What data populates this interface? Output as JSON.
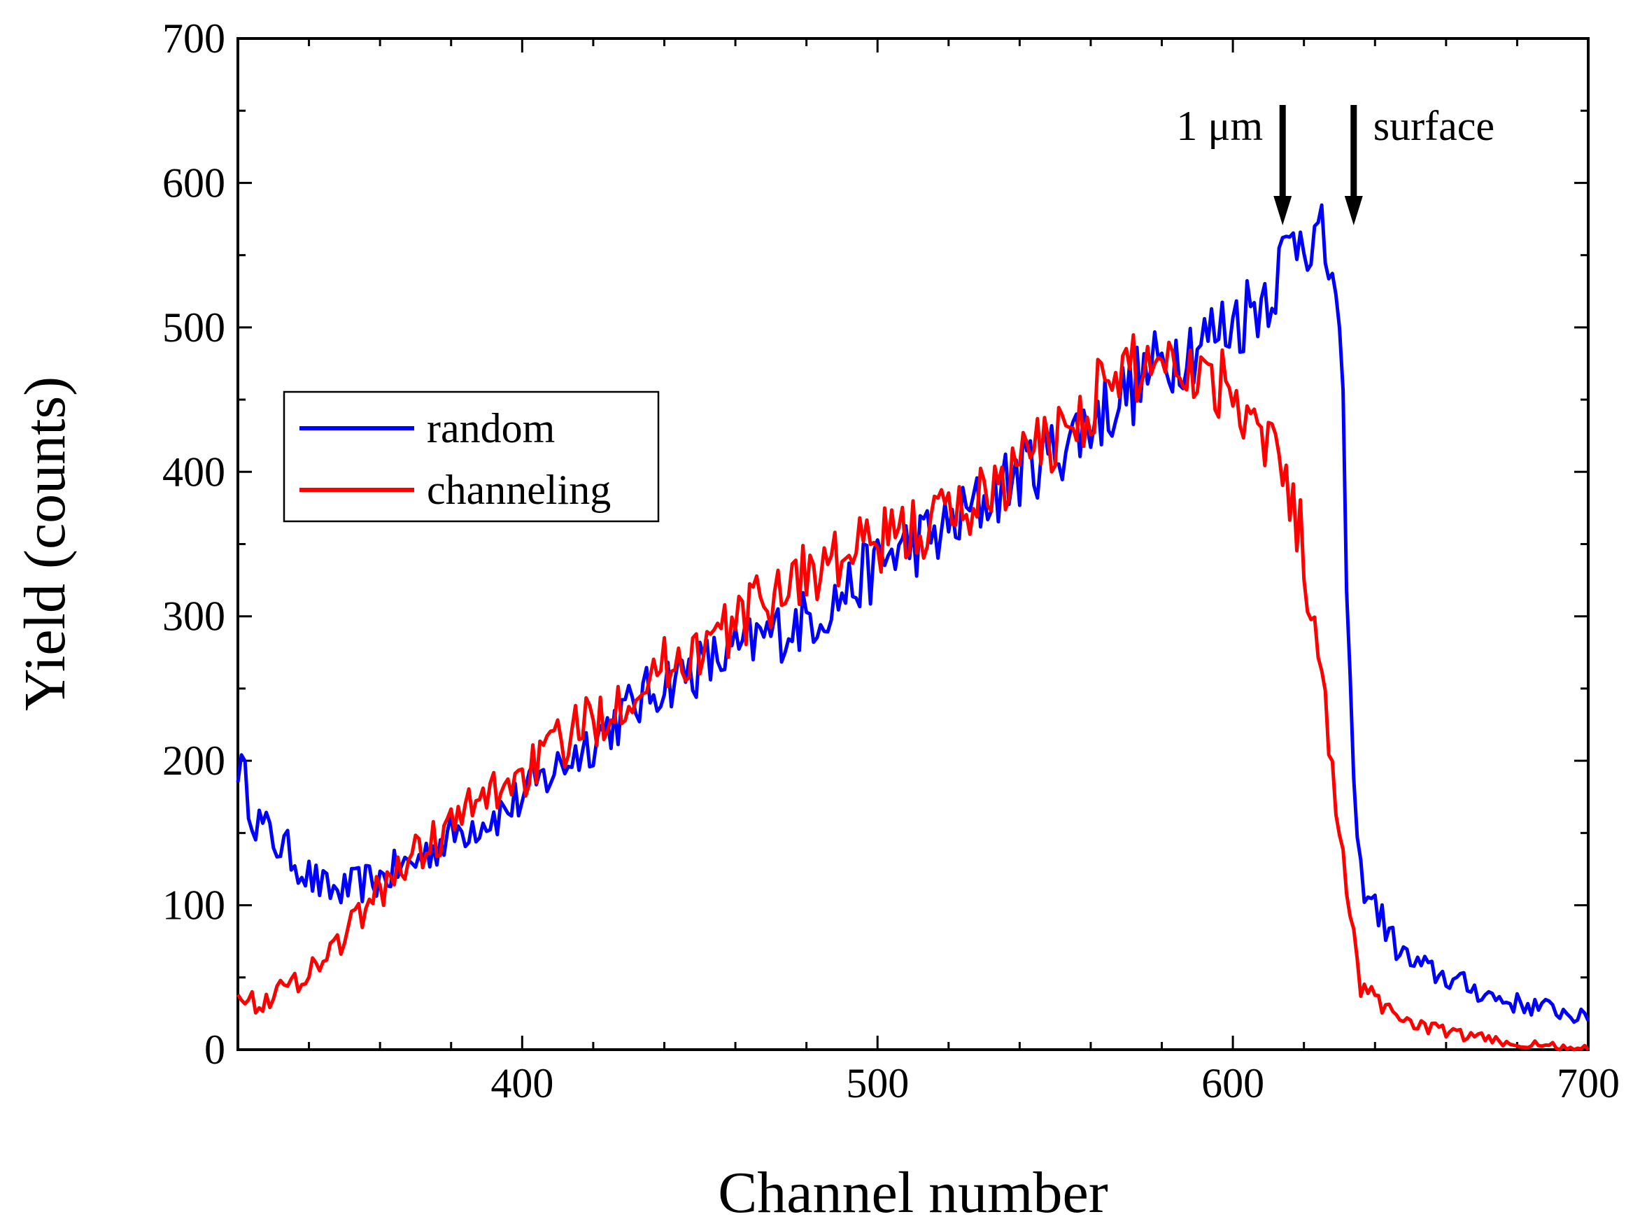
{
  "chart_data": {
    "type": "line",
    "title": "",
    "xlabel": "Channel number",
    "ylabel": "Yield (counts)",
    "xlim": [
      320,
      700
    ],
    "ylim": [
      0,
      700
    ],
    "x_ticks": [
      400,
      500,
      600,
      700
    ],
    "y_ticks": [
      0,
      100,
      200,
      300,
      400,
      500,
      600,
      700
    ],
    "grid": false,
    "legend_position": "center-left",
    "series": [
      {
        "name": "random",
        "color": "#0000ff",
        "x": [
          320,
          325,
          330,
          335,
          340,
          345,
          350,
          355,
          360,
          365,
          370,
          375,
          380,
          385,
          390,
          395,
          400,
          405,
          410,
          415,
          420,
          425,
          430,
          435,
          440,
          445,
          450,
          455,
          460,
          465,
          470,
          475,
          480,
          485,
          490,
          495,
          500,
          505,
          510,
          515,
          520,
          525,
          530,
          535,
          540,
          545,
          550,
          555,
          560,
          565,
          570,
          575,
          580,
          585,
          590,
          595,
          600,
          603,
          606,
          609,
          612,
          615,
          618,
          620,
          622,
          625,
          628,
          630,
          631,
          633,
          634,
          636,
          640,
          645,
          650,
          655,
          660,
          665,
          670,
          675,
          680,
          685,
          690,
          695,
          700
        ],
        "y": [
          200,
          160,
          145,
          135,
          120,
          110,
          110,
          115,
          118,
          125,
          130,
          140,
          148,
          155,
          160,
          165,
          175,
          185,
          195,
          205,
          215,
          225,
          235,
          245,
          255,
          260,
          265,
          270,
          275,
          282,
          288,
          292,
          298,
          305,
          315,
          325,
          335,
          345,
          350,
          355,
          360,
          370,
          380,
          390,
          400,
          408,
          415,
          425,
          435,
          445,
          455,
          465,
          475,
          485,
          490,
          495,
          505,
          510,
          515,
          525,
          535,
          550,
          565,
          575,
          560,
          555,
          540,
          475,
          430,
          250,
          180,
          120,
          100,
          75,
          60,
          55,
          50,
          45,
          40,
          35,
          32,
          30,
          28,
          25,
          20
        ]
      },
      {
        "name": "channeling",
        "color": "#ff0000",
        "x": [
          320,
          325,
          330,
          335,
          340,
          345,
          350,
          355,
          360,
          365,
          370,
          375,
          380,
          385,
          390,
          395,
          400,
          405,
          410,
          415,
          420,
          425,
          430,
          435,
          440,
          445,
          450,
          455,
          460,
          465,
          470,
          475,
          480,
          485,
          490,
          495,
          500,
          505,
          510,
          515,
          520,
          525,
          530,
          535,
          540,
          545,
          550,
          555,
          560,
          565,
          570,
          575,
          580,
          585,
          590,
          595,
          600,
          603,
          606,
          609,
          612,
          615,
          618,
          620,
          622,
          625,
          628,
          630,
          633,
          636,
          640,
          645,
          650,
          655,
          660,
          665,
          670,
          675,
          680,
          685,
          690,
          695,
          700
        ],
        "y": [
          45,
          30,
          38,
          45,
          55,
          65,
          80,
          95,
          110,
          125,
          135,
          145,
          155,
          165,
          175,
          185,
          190,
          200,
          210,
          220,
          228,
          238,
          248,
          258,
          265,
          272,
          278,
          285,
          295,
          305,
          315,
          325,
          330,
          335,
          340,
          345,
          350,
          355,
          360,
          365,
          370,
          375,
          385,
          395,
          405,
          415,
          425,
          435,
          448,
          460,
          468,
          475,
          480,
          480,
          470,
          465,
          460,
          450,
          440,
          430,
          415,
          395,
          370,
          345,
          300,
          250,
          210,
          150,
          90,
          45,
          35,
          25,
          20,
          15,
          12,
          10,
          8,
          6,
          4,
          3,
          2,
          1,
          0
        ]
      }
    ],
    "annotations": [
      {
        "text": "1 μm",
        "x": 614
      },
      {
        "text": "surface",
        "x": 634
      }
    ]
  }
}
